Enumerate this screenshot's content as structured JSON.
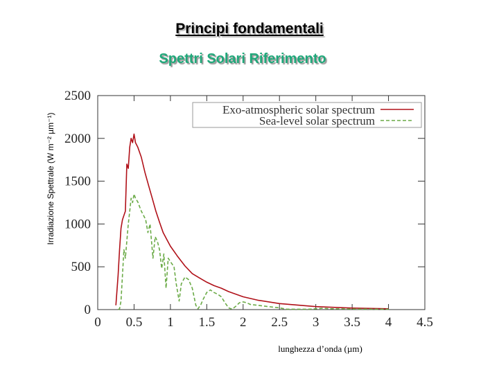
{
  "header": {
    "title": "Principi fondamentali",
    "subtitle": "Spettri Solari Riferimento"
  },
  "colors": {
    "exo": "#b01018",
    "sea": "#6aaa46",
    "subtitle": "#20a87a",
    "axes": "#333333"
  },
  "chart_data": {
    "type": "line",
    "title": "",
    "xlabel": "lunghezza d’onda (µm)",
    "ylabel": "Irradiazione Spettrale   (W m⁻² µm⁻¹)",
    "xlim": [
      0,
      4.5
    ],
    "ylim": [
      0,
      2500
    ],
    "xticks": [
      "0",
      "0.5",
      "1",
      "1.5",
      "2",
      "2.5",
      "3",
      "3.5",
      "4",
      "4.5"
    ],
    "yticks": [
      "0",
      "500",
      "1000",
      "1500",
      "2000",
      "2500"
    ],
    "legend_position": "top-right",
    "grid": false,
    "series": [
      {
        "name": "Exo-atmospheric solar spectrum",
        "style": "solid",
        "x": [
          0.25,
          0.28,
          0.3,
          0.32,
          0.34,
          0.36,
          0.38,
          0.4,
          0.42,
          0.44,
          0.46,
          0.48,
          0.5,
          0.52,
          0.55,
          0.6,
          0.65,
          0.7,
          0.75,
          0.8,
          0.85,
          0.9,
          0.95,
          1.0,
          1.1,
          1.2,
          1.3,
          1.4,
          1.5,
          1.6,
          1.7,
          1.8,
          2.0,
          2.2,
          2.5,
          3.0,
          3.5,
          4.0
        ],
        "y": [
          50,
          400,
          700,
          950,
          1050,
          1100,
          1150,
          1700,
          1650,
          1900,
          2000,
          1950,
          2050,
          1950,
          1900,
          1780,
          1600,
          1450,
          1300,
          1150,
          1020,
          900,
          820,
          740,
          620,
          510,
          420,
          370,
          320,
          280,
          250,
          210,
          150,
          110,
          70,
          35,
          18,
          10
        ]
      },
      {
        "name": "Sea-level solar spectrum",
        "style": "dashed",
        "x": [
          0.28,
          0.3,
          0.32,
          0.34,
          0.36,
          0.38,
          0.4,
          0.42,
          0.44,
          0.46,
          0.48,
          0.5,
          0.52,
          0.55,
          0.6,
          0.63,
          0.66,
          0.69,
          0.72,
          0.76,
          0.79,
          0.82,
          0.85,
          0.88,
          0.91,
          0.94,
          0.97,
          1.0,
          1.05,
          1.08,
          1.12,
          1.15,
          1.2,
          1.25,
          1.3,
          1.35,
          1.38,
          1.42,
          1.45,
          1.5,
          1.55,
          1.6,
          1.65,
          1.7,
          1.75,
          1.8,
          1.85,
          1.9,
          1.95,
          2.0,
          2.05,
          2.1,
          2.2,
          2.3,
          2.4,
          2.5,
          2.6,
          2.7,
          2.8,
          2.9,
          3.0,
          3.1,
          3.2,
          3.4,
          3.6,
          3.8,
          4.0
        ],
        "y": [
          0,
          10,
          100,
          400,
          700,
          600,
          800,
          1000,
          1150,
          1300,
          1250,
          1350,
          1300,
          1260,
          1150,
          1100,
          1050,
          900,
          1000,
          600,
          850,
          800,
          700,
          480,
          650,
          250,
          600,
          560,
          500,
          300,
          100,
          300,
          380,
          350,
          250,
          50,
          10,
          60,
          120,
          200,
          230,
          200,
          180,
          150,
          80,
          20,
          5,
          40,
          80,
          90,
          80,
          60,
          50,
          40,
          30,
          20,
          5,
          5,
          5,
          5,
          10,
          15,
          10,
          8,
          6,
          5,
          4
        ]
      }
    ]
  }
}
